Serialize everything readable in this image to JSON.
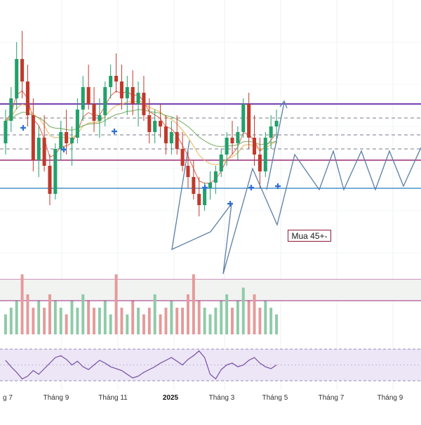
{
  "annotation": {
    "text": "Mua 45+-"
  },
  "x_axis": {
    "labels": [
      "g 7",
      "Tháng 9",
      "Tháng 11",
      "2025",
      "Tháng 3",
      "Tháng 5",
      "Tháng 7",
      "Tháng 9"
    ]
  },
  "colors": {
    "up": "#22a06b",
    "down": "#c0392b",
    "resistance": "#7b3fb0",
    "support": "#9b2a7a",
    "bottom_line": "#4a90c8",
    "projection": "#5b7fa6",
    "ema_fast": "#e06b5a",
    "ema_mid": "#e8b860",
    "ema_slow": "#7fb069",
    "rsi_line": "#7d5ba6",
    "rsi_band": "#ede6f7",
    "marker": "#2f6fd6"
  },
  "chart_data": {
    "type": "candlestick",
    "price_series_ohlc": [
      [
        52,
        58,
        50,
        56
      ],
      [
        56,
        62,
        54,
        60
      ],
      [
        60,
        70,
        58,
        67
      ],
      [
        67,
        72,
        60,
        63
      ],
      [
        63,
        66,
        55,
        57
      ],
      [
        57,
        60,
        47,
        49
      ],
      [
        49,
        55,
        46,
        53
      ],
      [
        53,
        57,
        47,
        48
      ],
      [
        48,
        50,
        41,
        43
      ],
      [
        43,
        52,
        42,
        51
      ],
      [
        51,
        56,
        49,
        54
      ],
      [
        54,
        58,
        50,
        52
      ],
      [
        52,
        55,
        48,
        53
      ],
      [
        53,
        60,
        52,
        58
      ],
      [
        58,
        64,
        56,
        62
      ],
      [
        62,
        66,
        58,
        59
      ],
      [
        59,
        62,
        54,
        56
      ],
      [
        56,
        60,
        53,
        57
      ],
      [
        57,
        63,
        55,
        62
      ],
      [
        62,
        66,
        60,
        64
      ],
      [
        64,
        68,
        61,
        63
      ],
      [
        63,
        66,
        58,
        60
      ],
      [
        60,
        64,
        57,
        62
      ],
      [
        62,
        65,
        57,
        59
      ],
      [
        59,
        63,
        55,
        61
      ],
      [
        61,
        64,
        56,
        57
      ],
      [
        57,
        60,
        52,
        54
      ],
      [
        54,
        58,
        52,
        56
      ],
      [
        56,
        59,
        53,
        55
      ],
      [
        55,
        57,
        50,
        52
      ],
      [
        52,
        56,
        50,
        54
      ],
      [
        54,
        57,
        50,
        51
      ],
      [
        51,
        54,
        47,
        48
      ],
      [
        48,
        51,
        44,
        46
      ],
      [
        46,
        49,
        42,
        43
      ],
      [
        43,
        46,
        39,
        41
      ],
      [
        41,
        45,
        40,
        44
      ],
      [
        44,
        47,
        42,
        45
      ],
      [
        45,
        48,
        43,
        47
      ],
      [
        47,
        51,
        46,
        50
      ],
      [
        50,
        54,
        48,
        53
      ],
      [
        53,
        56,
        50,
        52
      ],
      [
        52,
        55,
        49,
        54
      ],
      [
        54,
        60,
        53,
        59
      ],
      [
        59,
        61,
        51,
        53
      ],
      [
        53,
        57,
        48,
        50
      ],
      [
        50,
        53,
        44,
        47
      ],
      [
        47,
        54,
        46,
        53
      ],
      [
        53,
        57,
        51,
        55
      ],
      [
        55,
        58,
        52,
        56
      ]
    ],
    "ylim": [
      30,
      75
    ],
    "levels": [
      {
        "kind": "resistance",
        "value": 59
      },
      {
        "kind": "mid-dashed",
        "value": 56.5
      },
      {
        "kind": "mid-dashed",
        "value": 53.5
      },
      {
        "kind": "mid-dashed",
        "value": 51
      },
      {
        "kind": "support",
        "value": 49
      },
      {
        "kind": "bottom",
        "value": 44
      }
    ],
    "volume": [
      3,
      4,
      5,
      9,
      6,
      4,
      5,
      4,
      6,
      5,
      4,
      3,
      5,
      4,
      6,
      5,
      4,
      4,
      5,
      3,
      9,
      4,
      3,
      5,
      4,
      3,
      4,
      6,
      3,
      4,
      5,
      4,
      4,
      6,
      9,
      5,
      4,
      3,
      4,
      5,
      6,
      4,
      5,
      7,
      5,
      6,
      4,
      5,
      4,
      3
    ],
    "rsi": [
      55,
      48,
      42,
      35,
      38,
      44,
      40,
      46,
      52,
      58,
      60,
      56,
      50,
      54,
      48,
      45,
      50,
      55,
      52,
      48,
      46,
      44,
      40,
      36,
      38,
      42,
      45,
      48,
      52,
      55,
      58,
      54,
      50,
      56,
      60,
      65,
      58,
      40,
      35,
      45,
      50,
      52,
      48,
      50,
      55,
      58,
      52,
      48,
      46,
      50
    ]
  }
}
